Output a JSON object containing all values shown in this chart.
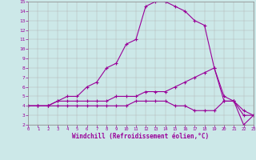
{
  "background_color": "#cce8e8",
  "line_color": "#990099",
  "grid_color": "#b0b0b0",
  "xlabel": "Windchill (Refroidissement éolien,°C)",
  "xlabel_color": "#990099",
  "xtick_color": "#990099",
  "ytick_color": "#990099",
  "xlim": [
    0,
    23
  ],
  "ylim": [
    2,
    15
  ],
  "xticks": [
    0,
    1,
    2,
    3,
    4,
    5,
    6,
    7,
    8,
    9,
    10,
    11,
    12,
    13,
    14,
    15,
    16,
    17,
    18,
    19,
    20,
    21,
    22,
    23
  ],
  "yticks": [
    2,
    3,
    4,
    5,
    6,
    7,
    8,
    9,
    10,
    11,
    12,
    13,
    14,
    15
  ],
  "line1_x": [
    0,
    1,
    2,
    3,
    4,
    5,
    6,
    7,
    8,
    9,
    10,
    11,
    12,
    13,
    14,
    15,
    16,
    17,
    18,
    19,
    20,
    21,
    22,
    23
  ],
  "line1_y": [
    4,
    4,
    4,
    4.5,
    5,
    5,
    6,
    6.5,
    8,
    8.5,
    10.5,
    11,
    14.5,
    15,
    15,
    14.5,
    14,
    13,
    12.5,
    8,
    5,
    4.5,
    3,
    3
  ],
  "line2_x": [
    0,
    1,
    2,
    3,
    4,
    5,
    6,
    7,
    8,
    9,
    10,
    11,
    12,
    13,
    14,
    15,
    16,
    17,
    18,
    19,
    20,
    21,
    22,
    23
  ],
  "line2_y": [
    4,
    4,
    4,
    4.5,
    4.5,
    4.5,
    4.5,
    4.5,
    4.5,
    5,
    5,
    5,
    5.5,
    5.5,
    5.5,
    6,
    6.5,
    7,
    7.5,
    8,
    4.5,
    4.5,
    3.5,
    3
  ],
  "line3_x": [
    0,
    1,
    2,
    3,
    4,
    5,
    6,
    7,
    8,
    9,
    10,
    11,
    12,
    13,
    14,
    15,
    16,
    17,
    18,
    19,
    20,
    21,
    22,
    23
  ],
  "line3_y": [
    4,
    4,
    4,
    4,
    4,
    4,
    4,
    4,
    4,
    4,
    4,
    4.5,
    4.5,
    4.5,
    4.5,
    4,
    4,
    3.5,
    3.5,
    3.5,
    4.5,
    4.5,
    2,
    3
  ]
}
